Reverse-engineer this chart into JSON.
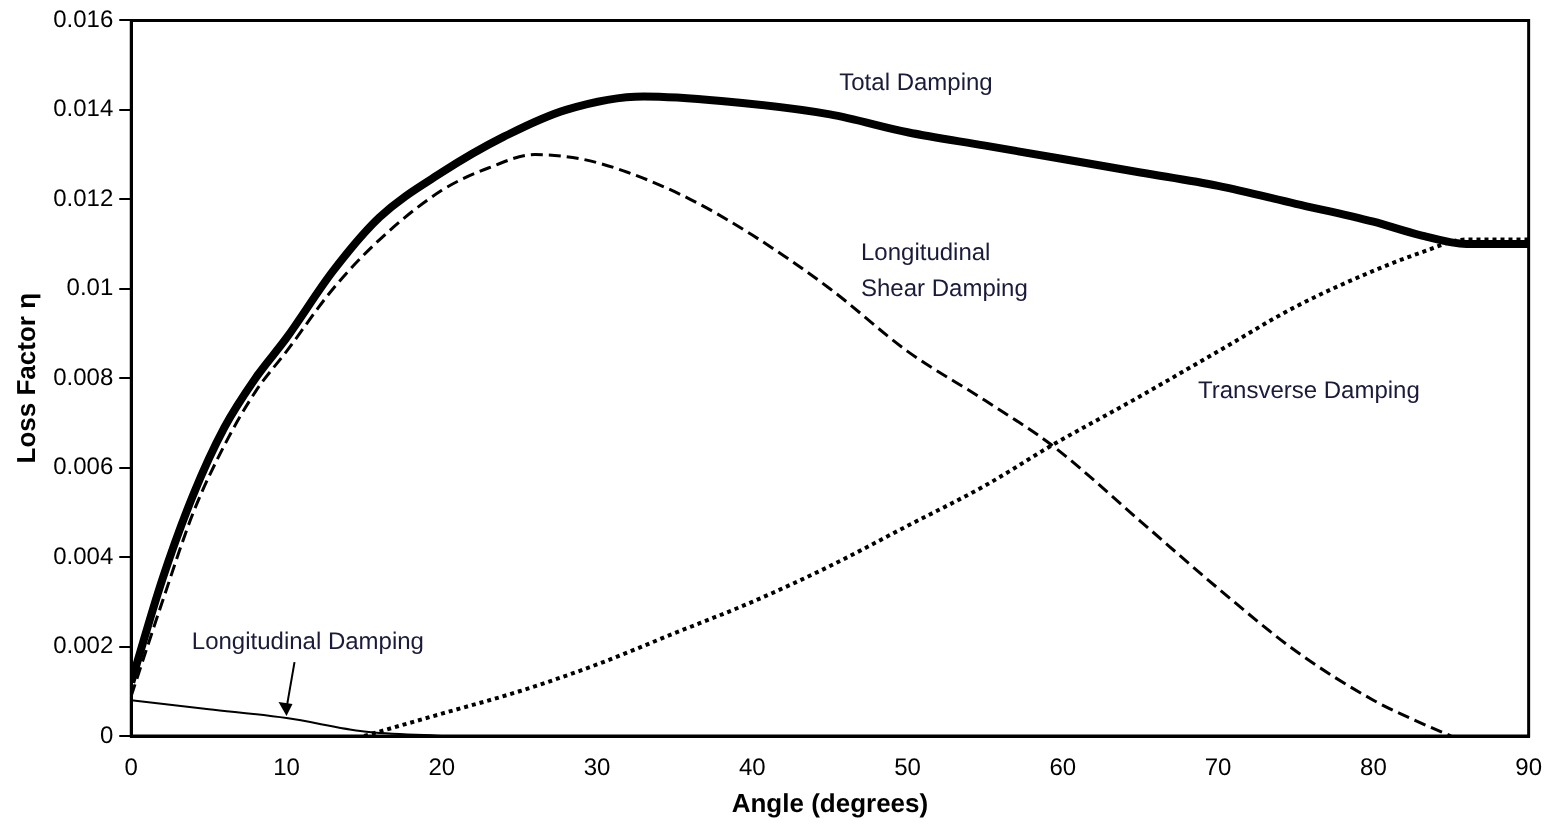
{
  "chart_data": {
    "type": "line",
    "xlabel": "Angle (degrees)",
    "ylabel": "Loss Factor η",
    "xlim": [
      0,
      90
    ],
    "xticks": [
      0,
      10,
      20,
      30,
      40,
      50,
      60,
      70,
      80,
      90
    ],
    "ylim": [
      0,
      0.016
    ],
    "yticks": [
      0,
      0.002,
      0.004,
      0.006,
      0.008,
      0.01,
      0.012,
      0.014,
      0.016
    ],
    "grid": false,
    "legend": false,
    "marker": "none",
    "series": [
      {
        "name": "Total Damping",
        "color": "#000000",
        "line_style": "solid",
        "x": [
          0,
          2,
          4,
          6,
          8,
          10,
          13,
          16,
          20,
          24,
          28,
          33,
          38,
          45,
          50,
          55,
          60,
          65,
          70,
          75,
          80,
          83,
          86,
          88,
          90
        ],
        "values": [
          0.0012,
          0.0035,
          0.0054,
          0.0069,
          0.008,
          0.0089,
          0.0104,
          0.0116,
          0.0126,
          0.0134,
          0.014,
          0.0143,
          0.0142,
          0.0139,
          0.0135,
          0.0132,
          0.0129,
          0.0126,
          0.0123,
          0.0119,
          0.0115,
          0.0112,
          0.011,
          0.011,
          0.011
        ]
      },
      {
        "name": "Longitudinal\nShear Damping",
        "color": "#000000",
        "line_style": "dashed",
        "x": [
          0,
          2,
          4,
          6,
          8,
          10,
          13,
          16,
          20,
          23,
          26,
          29,
          32,
          36,
          40,
          45,
          50,
          55,
          59.3,
          65,
          70,
          75,
          80,
          83,
          85
        ],
        "values": [
          0.0009,
          0.003,
          0.005,
          0.0065,
          0.0077,
          0.0086,
          0.01,
          0.0111,
          0.0122,
          0.0127,
          0.013,
          0.0129,
          0.0126,
          0.012,
          0.0112,
          0.01,
          0.0086,
          0.0075,
          0.0065,
          0.0048,
          0.0033,
          0.0019,
          0.0008,
          0.0003,
          0
        ]
      },
      {
        "name": "Transverse Damping",
        "color": "#000000",
        "line_style": "dotted",
        "x": [
          15,
          20,
          25,
          30,
          35,
          40,
          45,
          50,
          55,
          59.3,
          65,
          70,
          75,
          80,
          83,
          86,
          88,
          90
        ],
        "values": [
          0,
          0.0005,
          0.001,
          0.0016,
          0.0023,
          0.003,
          0.0038,
          0.0047,
          0.0056,
          0.0065,
          0.0076,
          0.0086,
          0.0096,
          0.0104,
          0.0108,
          0.0111,
          0.0111,
          0.0111
        ]
      },
      {
        "name": "Longitudinal Damping",
        "color": "#000000",
        "line_style": "solid",
        "x": [
          0,
          5,
          10,
          15,
          20
        ],
        "values": [
          0.0008,
          0.0006,
          0.0004,
          0.0001,
          0
        ]
      }
    ]
  }
}
